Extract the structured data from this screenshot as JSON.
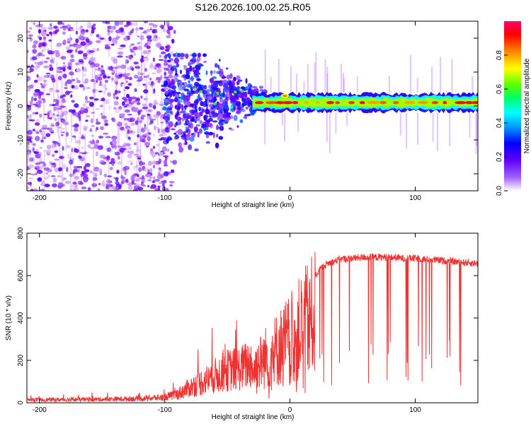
{
  "figure_title": "S126.2026.100.02.25.R05",
  "chart_data": [
    {
      "type": "heatmap",
      "title": "S126.2026.100.02.25.R05",
      "xlabel": "Height of straight line (km)",
      "ylabel": "Frequency (Hz)",
      "xlim": [
        -210,
        150
      ],
      "ylim": [
        -25,
        25
      ],
      "xticks": [
        -200,
        -100,
        0,
        100
      ],
      "yticks": [
        -20,
        -10,
        0,
        10,
        20
      ],
      "colorbar": {
        "label": "Normalized spectral amplitude",
        "range": [
          0,
          1
        ],
        "ticks": [
          0.0,
          0.2,
          0.4,
          0.6,
          0.8
        ],
        "colormap": [
          "#ffffff",
          "#7d00ff",
          "#0000ff",
          "#00ffff",
          "#00ff00",
          "#ffff00",
          "#ff8800",
          "#ff0000",
          "#ff0066"
        ]
      },
      "features": [
        {
          "name": "noise",
          "x_range": [
            -210,
            -100
          ],
          "freq_range": [
            -25,
            25
          ],
          "amplitude": 0.12
        },
        {
          "name": "transition",
          "x_range": [
            -100,
            -30
          ],
          "freq_range": [
            -20,
            15
          ],
          "amplitude": 0.2
        },
        {
          "name": "signal_line",
          "x_range": [
            -30,
            150
          ],
          "freq_center": 1,
          "amplitude": 0.9
        }
      ]
    },
    {
      "type": "line",
      "xlabel": "Height of straight line (km)",
      "ylabel": "SNR (10 * v/v)",
      "xlim": [
        -210,
        150
      ],
      "ylim": [
        0,
        800
      ],
      "xticks": [
        -200,
        -100,
        0,
        100
      ],
      "yticks": [
        0,
        200,
        400,
        600,
        800
      ],
      "color": "#ee3333",
      "series": [
        {
          "name": "SNR envelope",
          "x": [
            -210,
            -150,
            -120,
            -100,
            -90,
            -80,
            -70,
            -60,
            -50,
            -40,
            -30,
            -25,
            -20,
            -15,
            -10,
            -5,
            0,
            5,
            10,
            15,
            20,
            25,
            30,
            40,
            50,
            60,
            70,
            80,
            90,
            100,
            110,
            120,
            130,
            140,
            150
          ],
          "values": [
            15,
            18,
            22,
            28,
            45,
            80,
            110,
            140,
            170,
            180,
            210,
            260,
            300,
            330,
            360,
            400,
            430,
            470,
            520,
            560,
            600,
            640,
            660,
            680,
            685,
            690,
            690,
            690,
            685,
            685,
            680,
            675,
            670,
            665,
            660
          ]
        }
      ]
    }
  ]
}
